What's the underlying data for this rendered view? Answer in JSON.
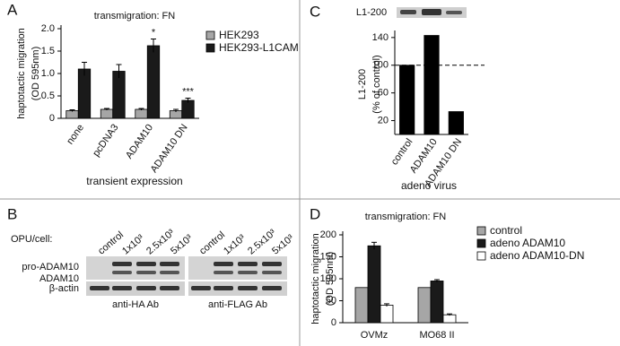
{
  "chart_data": [
    {
      "type": "bar",
      "panel": "A",
      "title": "transmigration: FN",
      "ylabel": [
        "haptotactic migration",
        "(OD 595nm)"
      ],
      "xlabel": "transient expression",
      "categories": [
        "none",
        "pcDNA3",
        "ADAM10",
        "ADAM10 DN"
      ],
      "series": [
        {
          "name": "HEK293",
          "color": "#a6a6a6",
          "values": [
            0.17,
            0.2,
            0.2,
            0.17
          ],
          "errors": [
            0.02,
            0.02,
            0.02,
            0.03
          ]
        },
        {
          "name": "HEK293-L1CAM",
          "color": "#1a1a1a",
          "values": [
            1.1,
            1.05,
            1.62,
            0.4
          ],
          "errors": [
            0.15,
            0.15,
            0.15,
            0.05
          ],
          "significance": [
            null,
            null,
            "*",
            "***"
          ]
        }
      ],
      "ylim": [
        0,
        2
      ],
      "yticks": [
        0,
        0.5,
        {
          "value": 1,
          "label": "1.0"
        },
        1.5,
        {
          "value": 2,
          "label": "2.0"
        }
      ]
    },
    {
      "type": "bar",
      "panel": "C",
      "blot_label": "L1-200",
      "ylabel": [
        "L1-200",
        "(% of control)"
      ],
      "xlabel": "adeno virus",
      "categories": [
        "control",
        "ADAM10",
        "ADAM10 DN"
      ],
      "values": [
        100,
        143,
        33
      ],
      "color": "#000000",
      "reference_line": 100,
      "ylim": [
        0,
        145
      ],
      "yticks": [
        20,
        60,
        100,
        140
      ]
    },
    {
      "type": "bar",
      "panel": "D",
      "title": "transmigration: FN",
      "ylabel": [
        "haptotactic migration",
        "(OD 595nm)"
      ],
      "categories": [
        "OVMz",
        "MO68 II"
      ],
      "series": [
        {
          "name": "control",
          "color": "#a6a6a6",
          "values": [
            80,
            80
          ]
        },
        {
          "name": "adeno ADAM10",
          "color": "#1a1a1a",
          "values": [
            175,
            95
          ],
          "errors": [
            8,
            3
          ]
        },
        {
          "name": "adeno ADAM10-DN",
          "color": "#ffffff",
          "values": [
            40,
            18
          ],
          "errors": [
            3,
            2
          ]
        }
      ],
      "ylim": [
        0,
        200
      ],
      "yticks": [
        0,
        50,
        100,
        150,
        200
      ]
    }
  ],
  "blot": {
    "panel": "B",
    "heading": "OPU/cell:",
    "lanes": [
      "control",
      "1x10³",
      "2.5x10³",
      "5x10³",
      "control",
      "1x10³",
      "2.5x10³",
      "5x10³"
    ],
    "rows": [
      "pro-ADAM10",
      "ADAM10",
      "β-actin"
    ],
    "antibodies": [
      "anti-HA Ab",
      "anti-FLAG Ab"
    ]
  }
}
